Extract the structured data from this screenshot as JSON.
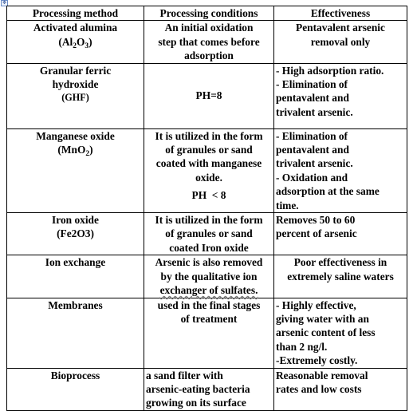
{
  "table": {
    "headers": [
      "Processing method",
      "Processing conditions",
      "Effectiveness"
    ],
    "rows": [
      {
        "method": [
          "Activated alumina",
          "(Al",
          "2",
          "O",
          "3",
          ")"
        ],
        "conditions": [
          "An initial oxidation",
          "step that comes before",
          "adsorption"
        ],
        "effectiveness": [
          "Pentavalent arsenic",
          "removal only"
        ]
      },
      {
        "method": [
          "Granular ferric",
          "hydroxide",
          "(GHF)"
        ],
        "conditions": [
          "PH=8"
        ],
        "effectiveness": [
          "- High adsorption ratio.",
          "- Elimination of",
          "pentavalent and",
          "trivalent arsenic."
        ]
      },
      {
        "method": [
          "Manganese oxide",
          "(MnO",
          "2",
          ")"
        ],
        "conditions": [
          "It is utilized in the form",
          "of granules or sand",
          "coated with manganese",
          "oxide.",
          "PH  < 8"
        ],
        "effectiveness": [
          "- Elimination of",
          "pentavalent and",
          "trivalent arsenic.",
          "- Oxidation and",
          "adsorption at the same",
          "time."
        ]
      },
      {
        "method": [
          "Iron oxide",
          "(Fe2O3)"
        ],
        "conditions": [
          "It is utilized in the form",
          "of granules or sand",
          "coated Iron oxide"
        ],
        "effectiveness": [
          "Removes 50 to 60",
          "percent of arsenic"
        ]
      },
      {
        "method": [
          "Ion exchange"
        ],
        "conditions": [
          "Arsenic is also removed",
          "by the qualitative ion",
          "exchanger of sulfates."
        ],
        "effectiveness": [
          "Poor effectiveness in",
          "extremely saline waters"
        ]
      },
      {
        "method": [
          "Membranes"
        ],
        "conditions": [
          "used in the final stages",
          "of treatment"
        ],
        "effectiveness": [
          "- Highly effective,",
          "giving water with an",
          "arsenic content of less",
          "than 2 ng/l.",
          "-Extremely costly."
        ]
      },
      {
        "method": [
          "Bioprocess"
        ],
        "conditions": [
          "a sand filter with",
          "arsenic-eating bacteria",
          "growing on its surface"
        ],
        "effectiveness": [
          "Reasonable removal",
          "rates and low costs"
        ]
      }
    ]
  }
}
